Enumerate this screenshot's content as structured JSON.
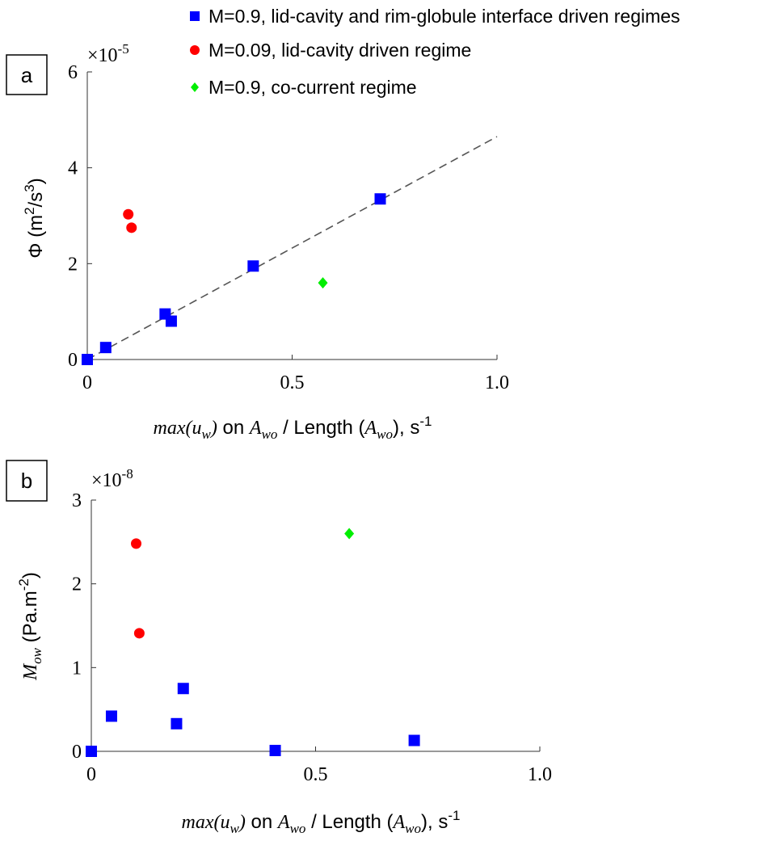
{
  "legend": [
    {
      "name": "M=0.9, lid-cavity and rim-globule interface driven regimes",
      "color": "#0000ff",
      "marker": "square"
    },
    {
      "name": "M=0.09, lid-cavity driven regime",
      "color": "#ff0000",
      "marker": "circle"
    },
    {
      "name": "M=0.9, co-current regime",
      "color": "#00ee00",
      "marker": "diamond"
    }
  ],
  "chart_data": [
    {
      "panel_label": "a",
      "type": "scatter",
      "exponent_base": "×10",
      "exponent_power": "-5",
      "ylabel_main": "Φ (m",
      "ylabel_sup1": "2",
      "ylabel_mid": "/s",
      "ylabel_sup2": "3",
      "ylabel_end": ")",
      "xlabel_func": "max",
      "xlabel_arg": "(u",
      "xlabel_sub1": "w",
      "xlabel_close": ")",
      "xlabel_on": " on ",
      "xlabel_A": "A",
      "xlabel_sub2": "wo",
      "xlabel_len": " / Length (",
      "xlabel_A2": "A",
      "xlabel_sub3": "wo",
      "xlabel_end": "), s",
      "xlabel_sup": "-1",
      "xlim": [
        0,
        1.0
      ],
      "ylim": [
        0,
        6
      ],
      "xticks": [
        "0",
        "0.5",
        "1.0"
      ],
      "yticks": [
        "0",
        "2",
        "4",
        "6"
      ],
      "xtick_values": [
        0,
        0.5,
        1.0
      ],
      "ytick_values": [
        0,
        2,
        4,
        6
      ],
      "series": [
        {
          "name": "M=0.9, lid-cavity and rim-globule interface driven regimes",
          "marker": "square",
          "color": "#0000ff",
          "x": [
            0.0,
            0.045,
            0.19,
            0.205,
            0.405,
            0.715
          ],
          "y": [
            0.0,
            0.25,
            0.95,
            0.8,
            1.95,
            3.35
          ]
        },
        {
          "name": "M=0.09, lid-cavity driven regime",
          "marker": "circle",
          "color": "#ff0000",
          "x": [
            0.1,
            0.108
          ],
          "y": [
            3.03,
            2.75
          ]
        },
        {
          "name": "M=0.9, co-current regime",
          "marker": "diamond",
          "color": "#00ee00",
          "x": [
            0.575
          ],
          "y": [
            1.6
          ]
        }
      ],
      "fit_line": {
        "x": [
          0.0,
          1.0
        ],
        "y": [
          0.0,
          4.65
        ]
      }
    },
    {
      "panel_label": "b",
      "type": "scatter",
      "exponent_base": "×10",
      "exponent_power": "-8",
      "ylabel_main": "M",
      "ylabel_sub": "ow",
      "ylabel_rest": " (Pa.m",
      "ylabel_sup": "-2",
      "ylabel_end": ")",
      "xlabel_func": "max",
      "xlabel_arg": "(u",
      "xlabel_sub1": "w",
      "xlabel_close": ")",
      "xlabel_on": " on ",
      "xlabel_A": "A",
      "xlabel_sub2": "wo",
      "xlabel_len": " / Length (",
      "xlabel_A2": "A",
      "xlabel_sub3": "wo",
      "xlabel_end": "), s",
      "xlabel_sup": "-1",
      "xlim": [
        0,
        1.0
      ],
      "ylim": [
        0,
        3
      ],
      "xticks": [
        "0",
        "0.5",
        "1.0"
      ],
      "yticks": [
        "0",
        "1",
        "2",
        "3"
      ],
      "xtick_values": [
        0,
        0.5,
        1.0
      ],
      "ytick_values": [
        0,
        1,
        2,
        3
      ],
      "series": [
        {
          "name": "M=0.9, lid-cavity and rim-globule interface driven regimes",
          "marker": "square",
          "color": "#0000ff",
          "x": [
            0.0,
            0.045,
            0.19,
            0.205,
            0.41,
            0.72
          ],
          "y": [
            0.0,
            0.42,
            0.33,
            0.75,
            0.01,
            0.13
          ]
        },
        {
          "name": "M=0.09, lid-cavity driven regime",
          "marker": "circle",
          "color": "#ff0000",
          "x": [
            0.1,
            0.107
          ],
          "y": [
            2.48,
            1.41
          ]
        },
        {
          "name": "M=0.9, co-current regime",
          "marker": "diamond",
          "color": "#00ee00",
          "x": [
            0.575
          ],
          "y": [
            2.6
          ]
        }
      ]
    }
  ]
}
